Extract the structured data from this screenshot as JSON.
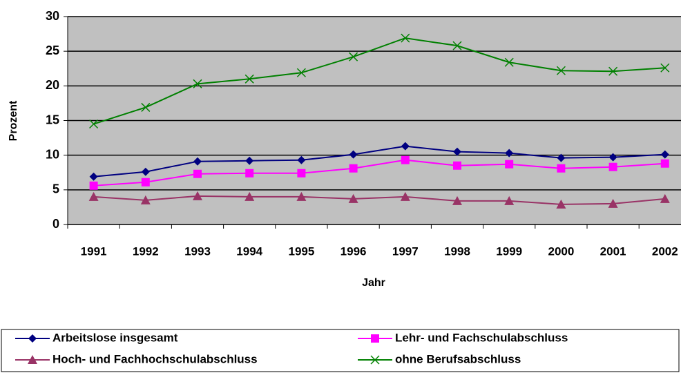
{
  "chart_data": {
    "type": "line",
    "y_label": "Prozent",
    "x_label": "Jahr",
    "categories": [
      "1991",
      "1992",
      "1993",
      "1994",
      "1995",
      "1996",
      "1997",
      "1998",
      "1999",
      "2000",
      "2001",
      "2002"
    ],
    "series": [
      {
        "name": "Arbeitslose insgesamt",
        "color": "#000080",
        "marker": "diamond",
        "values": [
          6.9,
          7.6,
          9.1,
          9.2,
          9.3,
          10.1,
          11.3,
          10.5,
          10.3,
          9.6,
          9.7,
          10.1
        ]
      },
      {
        "name": "Lehr- und Fachschulabschluss",
        "color": "#ff00ff",
        "marker": "square",
        "values": [
          5.6,
          6.1,
          7.3,
          7.4,
          7.4,
          8.1,
          9.3,
          8.5,
          8.7,
          8.1,
          8.3,
          8.8
        ]
      },
      {
        "name": "Hoch- und Fachhochschulabschluss",
        "color": "#993366",
        "marker": "triangle",
        "values": [
          4.0,
          3.5,
          4.1,
          4.0,
          4.0,
          3.7,
          4.0,
          3.4,
          3.4,
          2.9,
          3.0,
          3.7
        ]
      },
      {
        "name": "ohne Berufsabschluss",
        "color": "#008000",
        "marker": "x",
        "values": [
          14.5,
          16.9,
          20.3,
          21.0,
          21.9,
          24.2,
          26.9,
          25.8,
          23.4,
          22.2,
          22.1,
          22.6
        ]
      }
    ],
    "ylim": [
      0,
      30
    ],
    "yticks": [
      0,
      5,
      10,
      15,
      20,
      25,
      30
    ],
    "grid": true,
    "plot_background": "#c0c0c0"
  }
}
